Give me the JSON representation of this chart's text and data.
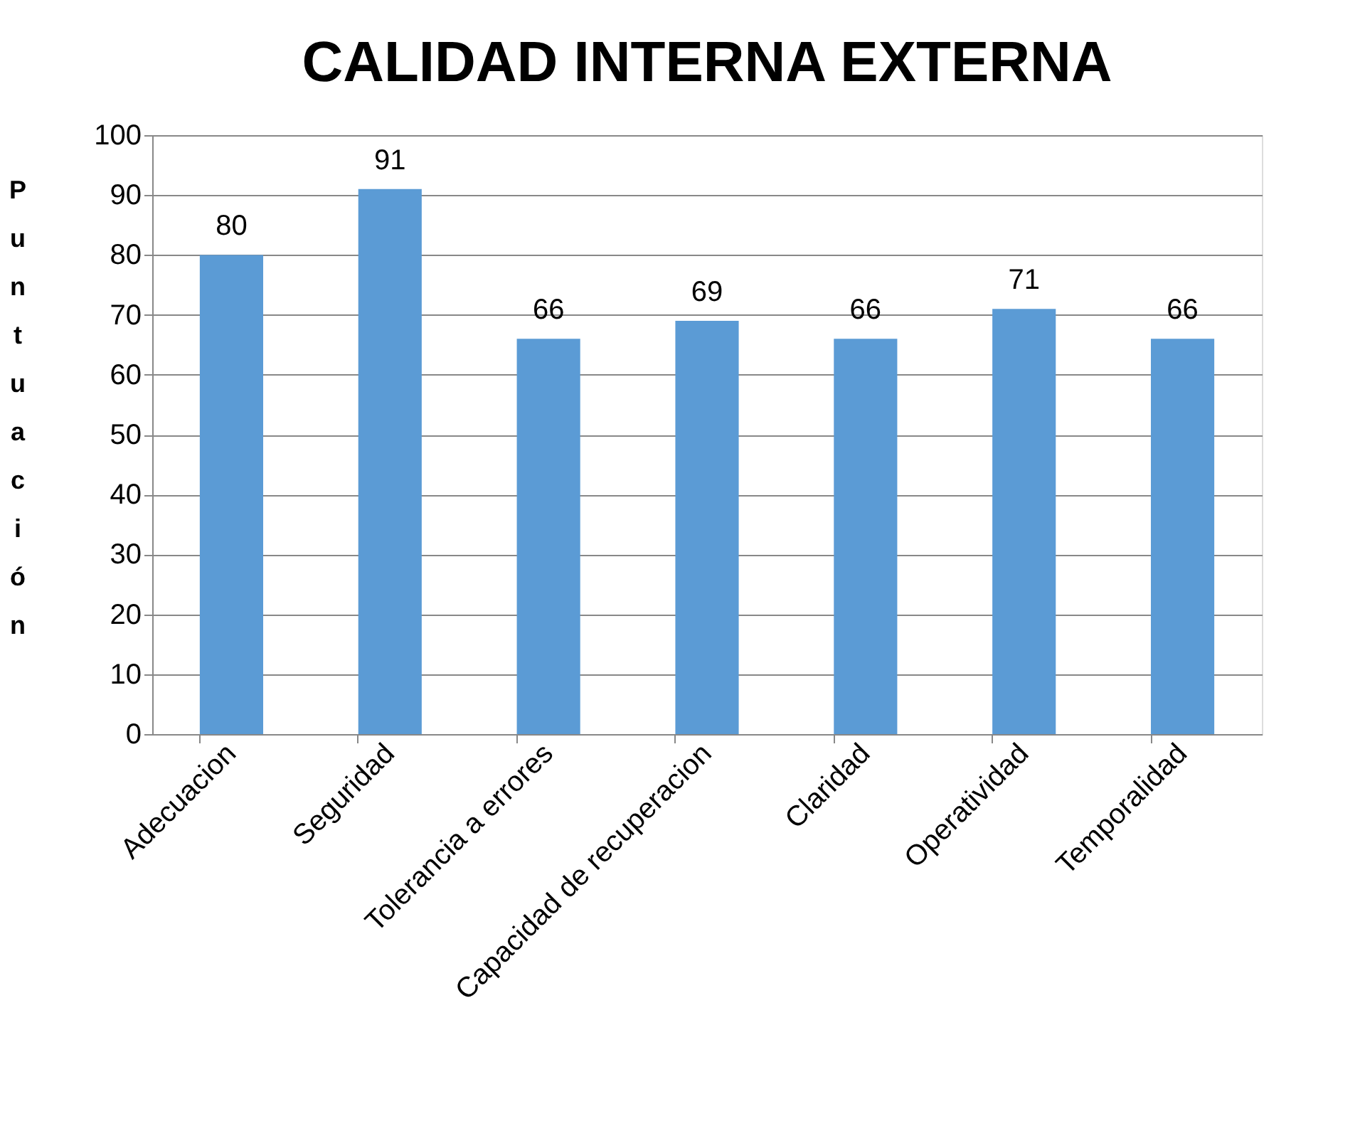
{
  "chart_data": {
    "type": "bar",
    "title": "CALIDAD INTERNA EXTERNA",
    "ylabel": "Puntuación",
    "categories": [
      "Adecuacion",
      "Seguridad",
      "Tolerancia a errores",
      "Capacidad de recuperacion",
      "Claridad",
      "Operatividad",
      "Temporalidad"
    ],
    "values": [
      80,
      91,
      66,
      69,
      66,
      71,
      66
    ],
    "color": "#5b9bd5",
    "ylim": [
      0,
      100
    ],
    "yticks": [
      0,
      10,
      20,
      30,
      40,
      50,
      60,
      70,
      80,
      90,
      100
    ],
    "grid": "y",
    "data_labels": true
  }
}
